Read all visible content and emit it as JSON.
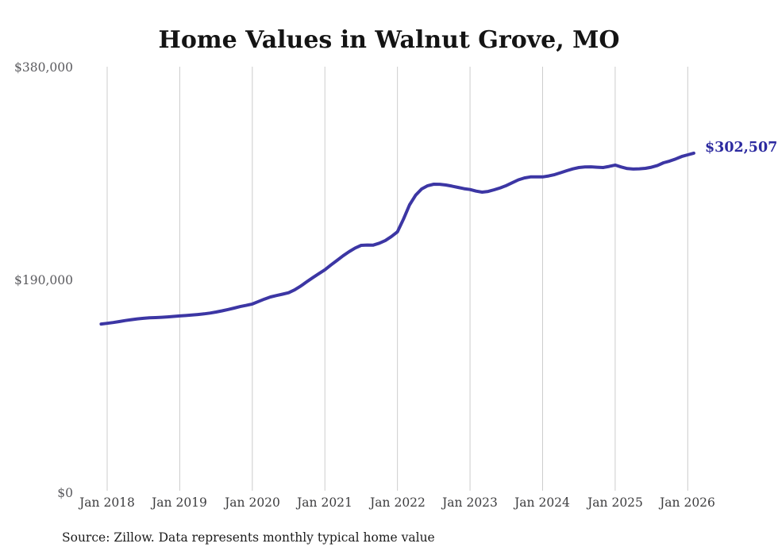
{
  "source_note": "Source: Zillow. Data represents monthly typical home value",
  "chart_data": {
    "type": "line",
    "title": "Home Values in Walnut Grove, MO",
    "series_name": "Monthly typical home value",
    "unit": "USD",
    "legend": "none",
    "grid": "vertical-only",
    "grid_color": "#cccccc",
    "line_color": "#3c36a4",
    "end_label": "$302,507",
    "end_value": 302507,
    "ylim": [
      0,
      380000
    ],
    "y_ticks": [
      {
        "label": "$380,000",
        "value": 380000
      },
      {
        "label": "$190,000",
        "value": 190000
      },
      {
        "label": "$0",
        "value": 0
      }
    ],
    "x_ticks": [
      {
        "label": "Jan 2018",
        "month": "2018-01"
      },
      {
        "label": "Jan 2019",
        "month": "2019-01"
      },
      {
        "label": "Jan 2020",
        "month": "2020-01"
      },
      {
        "label": "Jan 2021",
        "month": "2021-01"
      },
      {
        "label": "Jan 2022",
        "month": "2022-01"
      },
      {
        "label": "Jan 2023",
        "month": "2023-01"
      },
      {
        "label": "Jan 2024",
        "month": "2024-01"
      },
      {
        "label": "Jan 2025",
        "month": "2025-01"
      },
      {
        "label": "Jan 2026",
        "month": "2026-01"
      }
    ],
    "dates": [
      "2017-12",
      "2018-01",
      "2018-02",
      "2018-03",
      "2018-04",
      "2018-05",
      "2018-06",
      "2018-07",
      "2018-08",
      "2018-09",
      "2018-10",
      "2018-11",
      "2018-12",
      "2019-01",
      "2019-02",
      "2019-03",
      "2019-04",
      "2019-05",
      "2019-06",
      "2019-07",
      "2019-08",
      "2019-09",
      "2019-10",
      "2019-11",
      "2019-12",
      "2020-01",
      "2020-02",
      "2020-03",
      "2020-04",
      "2020-05",
      "2020-06",
      "2020-07",
      "2020-08",
      "2020-09",
      "2020-10",
      "2020-11",
      "2020-12",
      "2021-01",
      "2021-02",
      "2021-03",
      "2021-04",
      "2021-05",
      "2021-06",
      "2021-07",
      "2021-08",
      "2021-09",
      "2021-10",
      "2021-11",
      "2021-12",
      "2022-01",
      "2022-02",
      "2022-03",
      "2022-04",
      "2022-05",
      "2022-06",
      "2022-07",
      "2022-08",
      "2022-09",
      "2022-10",
      "2022-11",
      "2022-12",
      "2023-01",
      "2023-02",
      "2023-03",
      "2023-04",
      "2023-05",
      "2023-06",
      "2023-07",
      "2023-08",
      "2023-09",
      "2023-10",
      "2023-11",
      "2023-12",
      "2024-01",
      "2024-02",
      "2024-03",
      "2024-04",
      "2024-05",
      "2024-06",
      "2024-07",
      "2024-08",
      "2024-09",
      "2024-10",
      "2024-11",
      "2024-12",
      "2025-01",
      "2025-02",
      "2025-03",
      "2025-04",
      "2025-05",
      "2025-06",
      "2025-07",
      "2025-08",
      "2025-09",
      "2025-10",
      "2025-11",
      "2025-12",
      "2026-01",
      "2026-02"
    ],
    "values": [
      149400,
      150000,
      150700,
      151600,
      152500,
      153300,
      154000,
      154500,
      154900,
      155100,
      155400,
      155800,
      156200,
      156600,
      157000,
      157400,
      157900,
      158500,
      159200,
      160100,
      161200,
      162400,
      163700,
      165000,
      166100,
      167300,
      169500,
      171700,
      173600,
      174900,
      176100,
      177400,
      180000,
      183400,
      187200,
      190900,
      194500,
      198000,
      202300,
      206400,
      210500,
      214200,
      217500,
      219900,
      220200,
      220100,
      221800,
      224200,
      227800,
      232000,
      243500,
      256200,
      264800,
      270400,
      273300,
      274700,
      274600,
      274000,
      273000,
      271800,
      270700,
      269900,
      268500,
      267600,
      268200,
      269700,
      271400,
      273500,
      276000,
      278600,
      280300,
      281200,
      281300,
      281200,
      282100,
      283300,
      285000,
      286800,
      288400,
      289600,
      290200,
      290300,
      289900,
      289600,
      290600,
      291800,
      290100,
      288700,
      288300,
      288500,
      288900,
      289900,
      291500,
      293900,
      295400,
      297300,
      299500,
      301000,
      302507
    ]
  }
}
